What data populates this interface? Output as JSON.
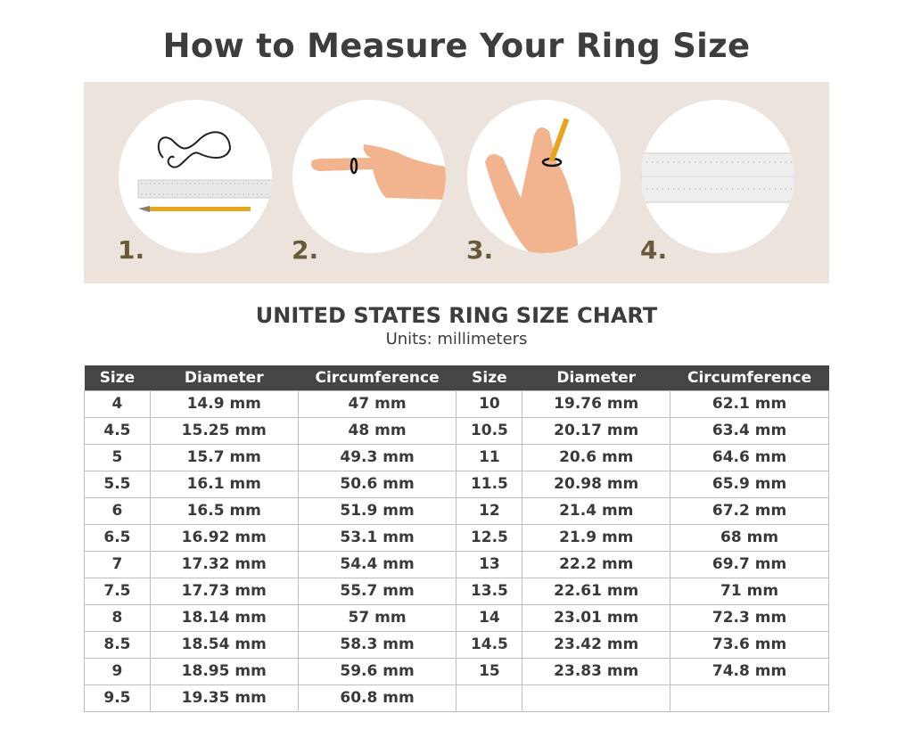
{
  "title": "How to Measure Your Ring Size",
  "steps": [
    {
      "label": "1.",
      "illustration": "string-ruler-pencil"
    },
    {
      "label": "2.",
      "illustration": "string-around-finger"
    },
    {
      "label": "3.",
      "illustration": "mark-string-with-pencil"
    },
    {
      "label": "4.",
      "illustration": "ruler-measure"
    }
  ],
  "colors": {
    "panel_bg": "#ece3dc",
    "step_number": "#6b5a3a",
    "header_bg": "#454545"
  },
  "chart": {
    "title": "UNITED STATES RING SIZE CHART",
    "units": "Units: millimeters",
    "headers": [
      "Size",
      "Diameter",
      "Circumference",
      "Size",
      "Diameter",
      "Circumference"
    ],
    "rows": [
      [
        "4",
        "14.9 mm",
        "47 mm",
        "10",
        "19.76 mm",
        "62.1 mm"
      ],
      [
        "4.5",
        "15.25 mm",
        "48 mm",
        "10.5",
        "20.17 mm",
        "63.4 mm"
      ],
      [
        "5",
        "15.7 mm",
        "49.3 mm",
        "11",
        "20.6 mm",
        "64.6 mm"
      ],
      [
        "5.5",
        "16.1 mm",
        "50.6 mm",
        "11.5",
        "20.98 mm",
        "65.9 mm"
      ],
      [
        "6",
        "16.5 mm",
        "51.9 mm",
        "12",
        "21.4 mm",
        "67.2 mm"
      ],
      [
        "6.5",
        "16.92 mm",
        "53.1 mm",
        "12.5",
        "21.9 mm",
        "68 mm"
      ],
      [
        "7",
        "17.32 mm",
        "54.4 mm",
        "13",
        "22.2 mm",
        "69.7 mm"
      ],
      [
        "7.5",
        "17.73 mm",
        "55.7 mm",
        "13.5",
        "22.61 mm",
        "71 mm"
      ],
      [
        "8",
        "18.14 mm",
        "57 mm",
        "14",
        "23.01 mm",
        "72.3 mm"
      ],
      [
        "8.5",
        "18.54 mm",
        "58.3 mm",
        "14.5",
        "23.42 mm",
        "73.6 mm"
      ],
      [
        "9",
        "18.95 mm",
        "59.6 mm",
        "15",
        "23.83 mm",
        "74.8 mm"
      ],
      [
        "9.5",
        "19.35 mm",
        "60.8 mm",
        "",
        "",
        ""
      ]
    ]
  }
}
